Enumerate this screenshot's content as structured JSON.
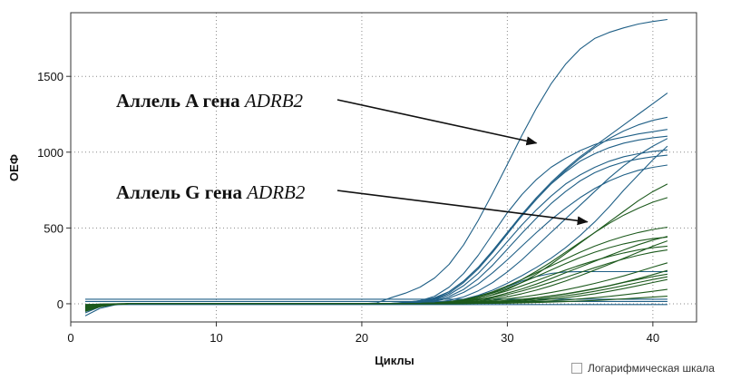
{
  "chart_data": {
    "type": "line",
    "xlabel": "Циклы",
    "ylabel": "ОЕФ",
    "xlim": [
      0,
      43
    ],
    "ylim": [
      -120,
      1920
    ],
    "x_ticks": [
      0,
      10,
      20,
      30,
      40
    ],
    "y_ticks": [
      0,
      500,
      1000,
      1500
    ],
    "grid": true,
    "colors": {
      "allele_a": "#1f5f86",
      "allele_g": "#1d5a1d",
      "axis": "#333333",
      "grid": "#8a8a8a"
    },
    "x": [
      1,
      2,
      3,
      4,
      5,
      6,
      7,
      8,
      9,
      10,
      11,
      12,
      13,
      14,
      15,
      16,
      17,
      18,
      19,
      20,
      21,
      22,
      23,
      24,
      25,
      26,
      27,
      28,
      29,
      30,
      31,
      32,
      33,
      34,
      35,
      36,
      37,
      38,
      39,
      40,
      41
    ],
    "series": [
      {
        "group": "allele_a",
        "values": [
          -80,
          -30,
          -8,
          0,
          0,
          0,
          0,
          0,
          0,
          0,
          0,
          0,
          0,
          0,
          0,
          0,
          0,
          0,
          0,
          0,
          5,
          40,
          70,
          110,
          170,
          260,
          390,
          550,
          730,
          920,
          1110,
          1290,
          1450,
          1580,
          1680,
          1750,
          1790,
          1820,
          1845,
          1862,
          1875
        ]
      },
      {
        "group": "allele_a",
        "values": [
          -60,
          -20,
          -5,
          0,
          0,
          0,
          0,
          0,
          0,
          0,
          0,
          0,
          0,
          0,
          0,
          0,
          0,
          0,
          0,
          0,
          0,
          2,
          10,
          20,
          40,
          80,
          150,
          240,
          350,
          470,
          590,
          700,
          800,
          890,
          970,
          1040,
          1110,
          1180,
          1250,
          1320,
          1390
        ]
      },
      {
        "group": "allele_a",
        "values": [
          -50,
          -15,
          -4,
          0,
          0,
          0,
          0,
          0,
          0,
          0,
          0,
          0,
          0,
          0,
          0,
          0,
          0,
          0,
          0,
          0,
          0,
          2,
          8,
          20,
          50,
          110,
          200,
          320,
          460,
          600,
          720,
          820,
          900,
          960,
          1010,
          1050,
          1080,
          1100,
          1120,
          1135,
          1150
        ]
      },
      {
        "group": "allele_a",
        "values": [
          -40,
          -12,
          -3,
          0,
          0,
          0,
          0,
          0,
          0,
          0,
          0,
          0,
          0,
          0,
          0,
          0,
          0,
          0,
          0,
          0,
          0,
          0,
          5,
          14,
          35,
          80,
          150,
          240,
          350,
          470,
          580,
          690,
          790,
          880,
          960,
          1030,
          1090,
          1140,
          1180,
          1210,
          1230
        ]
      },
      {
        "group": "allele_a",
        "values": [
          -40,
          -12,
          -3,
          0,
          0,
          0,
          0,
          0,
          0,
          0,
          0,
          0,
          0,
          0,
          0,
          0,
          0,
          0,
          0,
          0,
          0,
          0,
          4,
          12,
          30,
          70,
          140,
          230,
          340,
          460,
          580,
          690,
          790,
          870,
          940,
          990,
          1030,
          1060,
          1080,
          1095,
          1105
        ]
      },
      {
        "group": "allele_a",
        "values": [
          -35,
          -10,
          -3,
          0,
          0,
          0,
          0,
          0,
          0,
          0,
          0,
          0,
          0,
          0,
          0,
          0,
          0,
          0,
          0,
          0,
          0,
          0,
          3,
          10,
          26,
          60,
          120,
          200,
          300,
          410,
          520,
          620,
          710,
          790,
          850,
          900,
          940,
          970,
          990,
          1005,
          1015
        ]
      },
      {
        "group": "allele_a",
        "values": [
          -30,
          -10,
          -2,
          0,
          0,
          0,
          0,
          0,
          0,
          0,
          0,
          0,
          0,
          0,
          0,
          0,
          0,
          0,
          0,
          0,
          0,
          0,
          2,
          8,
          20,
          48,
          95,
          165,
          255,
          360,
          465,
          565,
          660,
          740,
          810,
          865,
          905,
          935,
          955,
          970,
          980
        ]
      },
      {
        "group": "allele_a",
        "values": [
          -30,
          -10,
          -2,
          0,
          0,
          0,
          0,
          0,
          0,
          0,
          0,
          0,
          0,
          0,
          0,
          0,
          0,
          0,
          0,
          0,
          0,
          0,
          2,
          6,
          16,
          38,
          75,
          130,
          205,
          290,
          380,
          470,
          555,
          630,
          700,
          760,
          810,
          850,
          880,
          900,
          915
        ]
      },
      {
        "group": "allele_a",
        "values": [
          -25,
          -8,
          -2,
          0,
          0,
          0,
          0,
          0,
          0,
          0,
          0,
          0,
          0,
          0,
          0,
          0,
          0,
          0,
          0,
          0,
          0,
          0,
          1,
          4,
          10,
          22,
          45,
          85,
          140,
          210,
          290,
          380,
          470,
          560,
          650,
          740,
          830,
          910,
          980,
          1040,
          1090
        ]
      },
      {
        "group": "allele_a",
        "values": [
          -25,
          -8,
          -2,
          0,
          0,
          0,
          0,
          0,
          0,
          0,
          0,
          0,
          0,
          0,
          0,
          0,
          0,
          0,
          0,
          0,
          0,
          0,
          0,
          2,
          6,
          14,
          30,
          55,
          90,
          135,
          185,
          240,
          300,
          370,
          450,
          540,
          640,
          750,
          850,
          950,
          1040
        ]
      },
      {
        "group": "allele_a",
        "values": [
          -20,
          -6,
          -1,
          0,
          0,
          0,
          0,
          0,
          0,
          0,
          0,
          0,
          0,
          0,
          0,
          0,
          0,
          0,
          0,
          0,
          0,
          0,
          0,
          2,
          5,
          12,
          24,
          45,
          75,
          112,
          150,
          180,
          200,
          210,
          212,
          212,
          212,
          212,
          212,
          212,
          212
        ]
      },
      {
        "group": "allele_a",
        "values": [
          30,
          30,
          30,
          30,
          30,
          30,
          30,
          30,
          30,
          30,
          30,
          30,
          30,
          30,
          30,
          30,
          30,
          30,
          30,
          30,
          30,
          30,
          30,
          30,
          30,
          30,
          30,
          30,
          30,
          30,
          30,
          30,
          30,
          30,
          30,
          30,
          30,
          30,
          30,
          30,
          30
        ]
      },
      {
        "group": "allele_a",
        "values": [
          15,
          15,
          15,
          15,
          15,
          15,
          15,
          15,
          15,
          15,
          15,
          15,
          15,
          15,
          15,
          15,
          15,
          15,
          15,
          15,
          15,
          15,
          15,
          15,
          15,
          15,
          15,
          15,
          15,
          15,
          15,
          15,
          15,
          15,
          15,
          15,
          15,
          15,
          15,
          15,
          15
        ]
      },
      {
        "group": "allele_a",
        "values": [
          -5,
          -5,
          -5,
          -5,
          -5,
          -5,
          -5,
          -5,
          -5,
          -5,
          -5,
          -5,
          -5,
          -5,
          -5,
          -5,
          -5,
          -5,
          -5,
          -5,
          -5,
          -5,
          -5,
          -5,
          -5,
          -5,
          -5,
          -5,
          -5,
          -5,
          -5,
          -5,
          -5,
          -5,
          -5,
          -5,
          -5,
          -5,
          -5,
          -5,
          -5
        ]
      },
      {
        "group": "allele_g",
        "values": [
          -50,
          -20,
          -5,
          0,
          0,
          0,
          0,
          0,
          0,
          0,
          0,
          0,
          0,
          0,
          0,
          0,
          0,
          0,
          0,
          0,
          0,
          0,
          0,
          2,
          5,
          10,
          20,
          35,
          60,
          95,
          140,
          195,
          260,
          330,
          400,
          470,
          540,
          610,
          680,
          740,
          790
        ]
      },
      {
        "group": "allele_g",
        "values": [
          -45,
          -18,
          -4,
          0,
          0,
          0,
          0,
          0,
          0,
          0,
          0,
          0,
          0,
          0,
          0,
          0,
          0,
          0,
          0,
          0,
          0,
          0,
          0,
          2,
          5,
          12,
          25,
          45,
          75,
          115,
          160,
          215,
          275,
          340,
          405,
          470,
          530,
          585,
          630,
          670,
          700
        ]
      },
      {
        "group": "allele_g",
        "values": [
          -40,
          -15,
          -4,
          0,
          0,
          0,
          0,
          0,
          0,
          0,
          0,
          0,
          0,
          0,
          0,
          0,
          0,
          0,
          0,
          0,
          0,
          0,
          0,
          2,
          6,
          14,
          28,
          50,
          80,
          118,
          160,
          205,
          250,
          295,
          340,
          380,
          415,
          445,
          470,
          490,
          505
        ]
      },
      {
        "group": "allele_g",
        "values": [
          -35,
          -12,
          -3,
          0,
          0,
          0,
          0,
          0,
          0,
          0,
          0,
          0,
          0,
          0,
          0,
          0,
          0,
          0,
          0,
          0,
          0,
          0,
          0,
          2,
          5,
          12,
          24,
          44,
          70,
          102,
          140,
          180,
          222,
          265,
          305,
          340,
          370,
          395,
          415,
          430,
          440
        ]
      },
      {
        "group": "allele_g",
        "values": [
          -30,
          -10,
          -3,
          0,
          0,
          0,
          0,
          0,
          0,
          0,
          0,
          0,
          0,
          0,
          0,
          0,
          0,
          0,
          0,
          0,
          0,
          0,
          0,
          1,
          4,
          10,
          20,
          36,
          58,
          86,
          118,
          152,
          188,
          222,
          255,
          285,
          312,
          335,
          355,
          370,
          380
        ]
      },
      {
        "group": "allele_g",
        "values": [
          -30,
          -10,
          -2,
          0,
          0,
          0,
          0,
          0,
          0,
          0,
          0,
          0,
          0,
          0,
          0,
          0,
          0,
          0,
          0,
          0,
          0,
          0,
          0,
          1,
          3,
          8,
          16,
          28,
          46,
          70,
          98,
          130,
          166,
          204,
          242,
          280,
          318,
          355,
          390,
          420,
          445
        ]
      },
      {
        "group": "allele_g",
        "values": [
          -25,
          -8,
          -2,
          0,
          0,
          0,
          0,
          0,
          0,
          0,
          0,
          0,
          0,
          0,
          0,
          0,
          0,
          0,
          0,
          0,
          0,
          0,
          0,
          1,
          3,
          7,
          14,
          25,
          40,
          60,
          84,
          112,
          142,
          174,
          206,
          238,
          268,
          296,
          320,
          340,
          355
        ]
      },
      {
        "group": "allele_g",
        "values": [
          -25,
          -8,
          -2,
          0,
          0,
          0,
          0,
          0,
          0,
          0,
          0,
          0,
          0,
          0,
          0,
          0,
          0,
          0,
          0,
          0,
          0,
          0,
          0,
          0,
          2,
          5,
          10,
          18,
          30,
          46,
          66,
          90,
          118,
          150,
          185,
          222,
          260,
          300,
          340,
          380,
          415
        ]
      },
      {
        "group": "allele_g",
        "values": [
          -20,
          -6,
          -2,
          0,
          0,
          0,
          0,
          0,
          0,
          0,
          0,
          0,
          0,
          0,
          0,
          0,
          0,
          0,
          0,
          0,
          0,
          0,
          0,
          0,
          2,
          4,
          8,
          14,
          22,
          32,
          44,
          58,
          74,
          92,
          112,
          134,
          158,
          184,
          212,
          242,
          270
        ]
      },
      {
        "group": "allele_g",
        "values": [
          -20,
          -6,
          -1,
          0,
          0,
          0,
          0,
          0,
          0,
          0,
          0,
          0,
          0,
          0,
          0,
          0,
          0,
          0,
          0,
          0,
          0,
          0,
          0,
          0,
          1,
          3,
          6,
          10,
          15,
          22,
          30,
          40,
          52,
          66,
          82,
          100,
          120,
          142,
          166,
          192,
          220
        ]
      },
      {
        "group": "allele_g",
        "values": [
          -15,
          -5,
          -1,
          0,
          0,
          0,
          0,
          0,
          0,
          0,
          0,
          0,
          0,
          0,
          0,
          0,
          0,
          0,
          0,
          0,
          0,
          0,
          0,
          0,
          1,
          2,
          5,
          9,
          14,
          20,
          28,
          38,
          50,
          64,
          80,
          98,
          118,
          140,
          160,
          180,
          195
        ]
      },
      {
        "group": "allele_g",
        "values": [
          -15,
          -5,
          -1,
          0,
          0,
          0,
          0,
          0,
          0,
          0,
          0,
          0,
          0,
          0,
          0,
          0,
          0,
          0,
          0,
          0,
          0,
          0,
          0,
          0,
          1,
          2,
          4,
          7,
          11,
          16,
          22,
          30,
          40,
          52,
          66,
          82,
          100,
          120,
          140,
          160,
          178
        ]
      },
      {
        "group": "allele_g",
        "values": [
          -10,
          -4,
          -1,
          0,
          0,
          0,
          0,
          0,
          0,
          0,
          0,
          0,
          0,
          0,
          0,
          0,
          0,
          0,
          0,
          0,
          0,
          0,
          0,
          0,
          0,
          1,
          3,
          5,
          8,
          12,
          16,
          22,
          30,
          40,
          52,
          66,
          82,
          100,
          120,
          140,
          160
        ]
      },
      {
        "group": "allele_g",
        "values": [
          -8,
          -3,
          -1,
          0,
          0,
          0,
          0,
          0,
          0,
          0,
          0,
          0,
          0,
          0,
          0,
          0,
          0,
          0,
          0,
          0,
          0,
          0,
          0,
          0,
          0,
          1,
          2,
          3,
          5,
          7,
          10,
          14,
          19,
          25,
          32,
          40,
          49,
          59,
          70,
          82,
          95
        ]
      },
      {
        "group": "allele_g",
        "values": [
          -5,
          -2,
          0,
          0,
          0,
          0,
          0,
          0,
          0,
          0,
          0,
          0,
          0,
          0,
          0,
          0,
          0,
          0,
          0,
          0,
          0,
          0,
          0,
          0,
          0,
          0,
          1,
          2,
          3,
          4,
          6,
          8,
          11,
          14,
          18,
          22,
          27,
          32,
          38,
          44,
          50
        ]
      }
    ],
    "annotations": [
      {
        "key": "allele_a",
        "text": "Аллель A гена",
        "gene": "ADRB2",
        "arrow_to": [
          32,
          1060
        ]
      },
      {
        "key": "allele_g",
        "text": "Аллель G гена",
        "gene": "ADRB2",
        "arrow_to": [
          35.5,
          540
        ]
      }
    ]
  },
  "log_scale": {
    "label": "Логарифмическая шкала",
    "checked": false
  }
}
